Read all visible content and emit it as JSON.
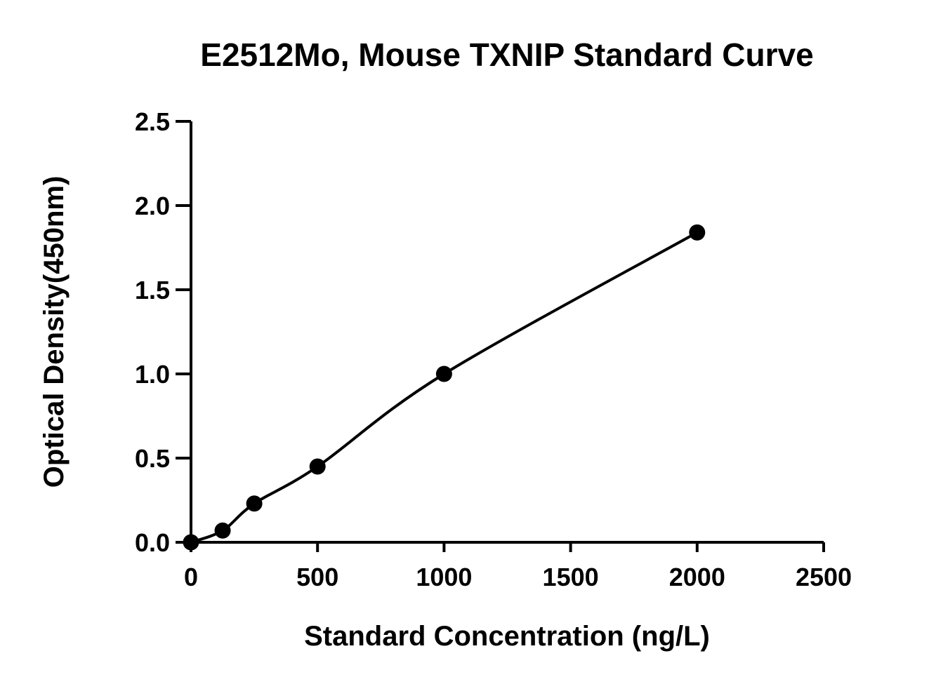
{
  "chart_data": {
    "type": "scatter",
    "title": "E2512Mo, Mouse TXNIP Standard Curve",
    "xlabel": "Standard Concentration (ng/L)",
    "ylabel": "Optical Density(450nm)",
    "xlim": [
      0,
      2500
    ],
    "ylim": [
      0,
      2.5
    ],
    "x_ticks": [
      0,
      500,
      1000,
      1500,
      2000,
      2500
    ],
    "x_tick_labels": [
      "0",
      "500",
      "1000",
      "1500",
      "2000",
      "2500"
    ],
    "y_ticks": [
      0,
      0.5,
      1.0,
      1.5,
      2.0,
      2.5
    ],
    "y_tick_labels": [
      "0.0",
      "0.5",
      "1.0",
      "1.5",
      "2.0",
      "2.5"
    ],
    "grid": false,
    "series": [
      {
        "x": [
          0,
          125,
          250,
          500,
          1000,
          2000
        ],
        "y": [
          0.0,
          0.07,
          0.23,
          0.45,
          1.0,
          1.84
        ]
      }
    ],
    "fit_curve": true,
    "colors": {
      "points": "#000000",
      "curve": "#000000",
      "axes": "#000000"
    }
  }
}
